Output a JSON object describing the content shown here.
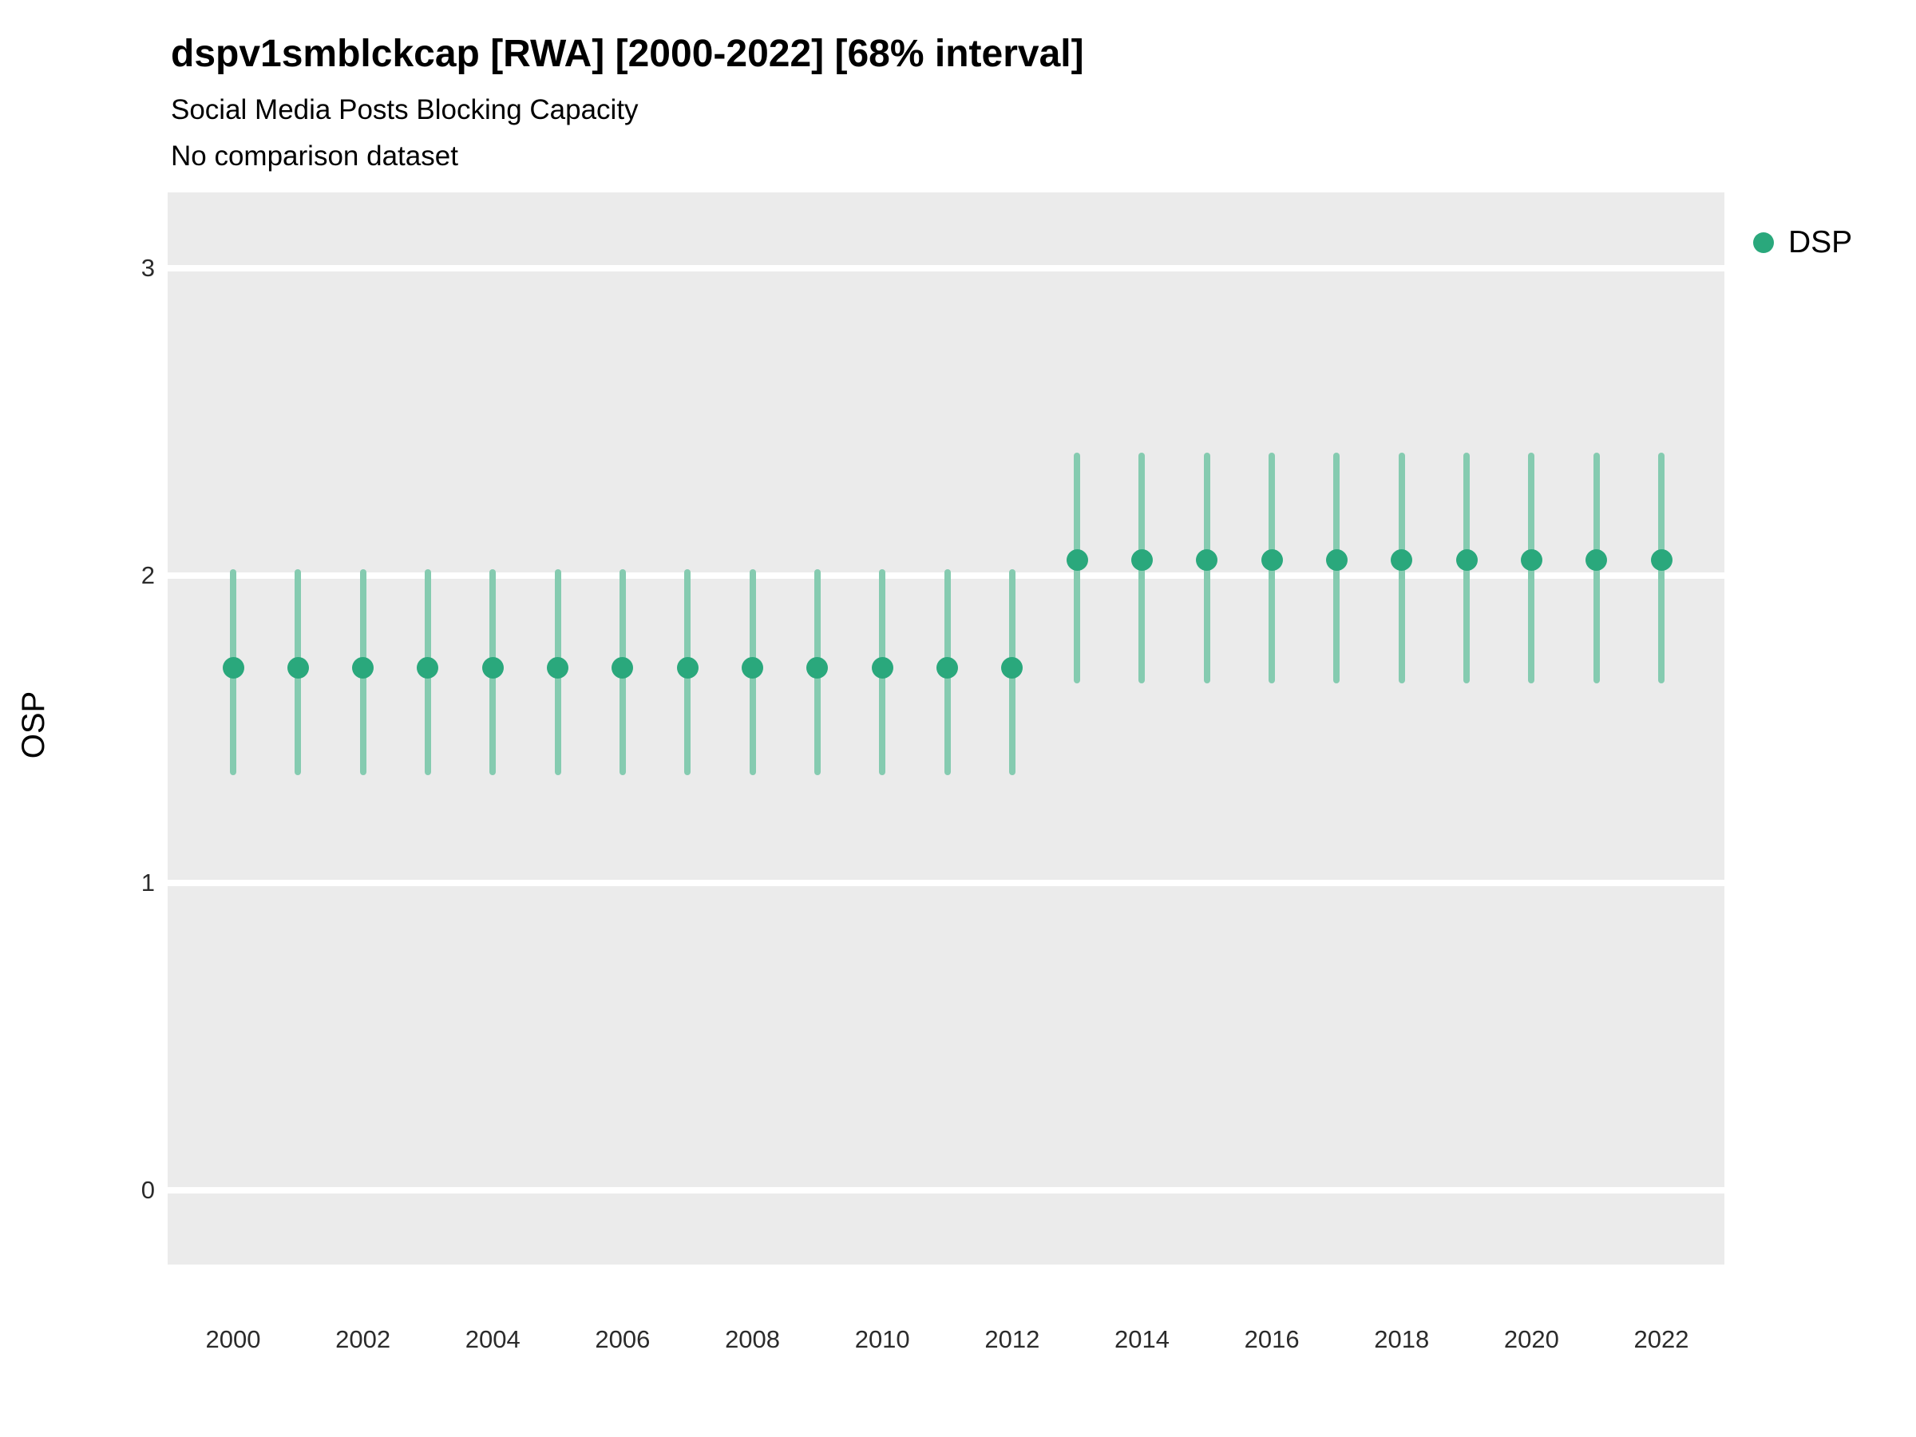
{
  "header": {
    "title": "dspv1smblckcap [RWA] [2000-2022] [68% interval]",
    "subtitle": "Social Media Posts Blocking Capacity",
    "note": "No comparison dataset"
  },
  "legend": {
    "label": "DSP"
  },
  "chart_data": {
    "type": "pointrange",
    "title": "dspv1smblckcap [RWA] [2000-2022] [68% interval]",
    "subtitle": "Social Media Posts Blocking Capacity",
    "note": "No comparison dataset",
    "interval": "68%",
    "xlabel": "",
    "ylabel": "OSP",
    "legend_position": "right",
    "grid": "major-horizontal-white-on-gray",
    "yticks": [
      0,
      1,
      2,
      3
    ],
    "xticks": [
      2000,
      2002,
      2004,
      2006,
      2008,
      2010,
      2012,
      2014,
      2016,
      2018,
      2020,
      2022
    ],
    "ylim": [
      -0.24,
      3.25
    ],
    "xlim": [
      1999,
      2023
    ],
    "colors": {
      "point": "#2aa87c",
      "range": "#85cbb0",
      "panel": "#ebebeb",
      "grid": "#ffffff"
    },
    "series_name": "DSP",
    "points": [
      {
        "year": 2000,
        "value": 1.7,
        "low": 1.35,
        "high": 2.02
      },
      {
        "year": 2001,
        "value": 1.7,
        "low": 1.35,
        "high": 2.02
      },
      {
        "year": 2002,
        "value": 1.7,
        "low": 1.35,
        "high": 2.02
      },
      {
        "year": 2003,
        "value": 1.7,
        "low": 1.35,
        "high": 2.02
      },
      {
        "year": 2004,
        "value": 1.7,
        "low": 1.35,
        "high": 2.02
      },
      {
        "year": 2005,
        "value": 1.7,
        "low": 1.35,
        "high": 2.02
      },
      {
        "year": 2006,
        "value": 1.7,
        "low": 1.35,
        "high": 2.02
      },
      {
        "year": 2007,
        "value": 1.7,
        "low": 1.35,
        "high": 2.02
      },
      {
        "year": 2008,
        "value": 1.7,
        "low": 1.35,
        "high": 2.02
      },
      {
        "year": 2009,
        "value": 1.7,
        "low": 1.35,
        "high": 2.02
      },
      {
        "year": 2010,
        "value": 1.7,
        "low": 1.35,
        "high": 2.02
      },
      {
        "year": 2011,
        "value": 1.7,
        "low": 1.35,
        "high": 2.02
      },
      {
        "year": 2012,
        "value": 1.7,
        "low": 1.35,
        "high": 2.02
      },
      {
        "year": 2013,
        "value": 2.05,
        "low": 1.65,
        "high": 2.4
      },
      {
        "year": 2014,
        "value": 2.05,
        "low": 1.65,
        "high": 2.4
      },
      {
        "year": 2015,
        "value": 2.05,
        "low": 1.65,
        "high": 2.4
      },
      {
        "year": 2016,
        "value": 2.05,
        "low": 1.65,
        "high": 2.4
      },
      {
        "year": 2017,
        "value": 2.05,
        "low": 1.65,
        "high": 2.4
      },
      {
        "year": 2018,
        "value": 2.05,
        "low": 1.65,
        "high": 2.4
      },
      {
        "year": 2019,
        "value": 2.05,
        "low": 1.65,
        "high": 2.4
      },
      {
        "year": 2020,
        "value": 2.05,
        "low": 1.65,
        "high": 2.4
      },
      {
        "year": 2021,
        "value": 2.05,
        "low": 1.65,
        "high": 2.4
      },
      {
        "year": 2022,
        "value": 2.05,
        "low": 1.65,
        "high": 2.4
      }
    ]
  }
}
